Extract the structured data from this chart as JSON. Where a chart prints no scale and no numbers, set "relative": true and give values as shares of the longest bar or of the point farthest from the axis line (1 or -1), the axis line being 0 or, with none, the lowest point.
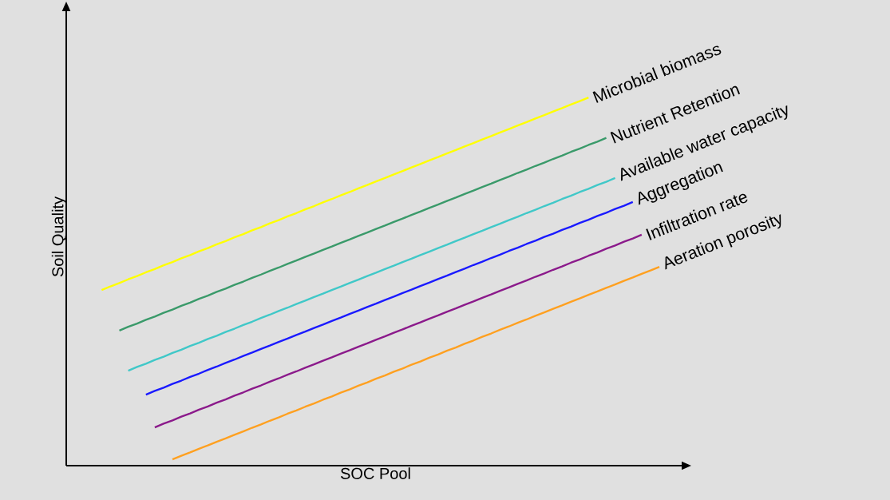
{
  "chart_data": {
    "type": "line",
    "relative": true,
    "xlabel": "SOC Pool",
    "ylabel": "Soil Quality",
    "categories": [
      null,
      null,
      null,
      null,
      null,
      null,
      null,
      null,
      null,
      null,
      null,
      null,
      null,
      null,
      null,
      null,
      null,
      null,
      null,
      null,
      null,
      null,
      null,
      null,
      null,
      null,
      null,
      null,
      null,
      null,
      null,
      null,
      null,
      null,
      null,
      null,
      null,
      null,
      null,
      null,
      null,
      null,
      null,
      null,
      null,
      null,
      null,
      null,
      null,
      null,
      null,
      null,
      null,
      null,
      null,
      null,
      null,
      null,
      null,
      null,
      null,
      null,
      null,
      null,
      null,
      null,
      null,
      null
    ],
    "series": [
      {
        "name": "Microbial biomass",
        "color": "#ffff00",
        "values": [
          null,
          null,
          null,
          null,
          0.477,
          0.487,
          0.496,
          0.506,
          0.515,
          0.525,
          0.534,
          0.544,
          0.553,
          0.563,
          0.572,
          0.582,
          0.591,
          0.601,
          0.61,
          0.62,
          0.629,
          0.639,
          0.648,
          0.658,
          0.667,
          0.677,
          0.686,
          0.696,
          0.705,
          0.715,
          0.724,
          0.734,
          0.743,
          0.753,
          0.762,
          0.772,
          0.781,
          0.791,
          0.8,
          0.81,
          0.819,
          0.829,
          0.838,
          0.848,
          0.857,
          0.867,
          0.876,
          0.886,
          0.895,
          0.905,
          0.914,
          0.924,
          0.933,
          0.943,
          0.952,
          0.962,
          0.971,
          0.981,
          0.99,
          1.0,
          null,
          null,
          null,
          null,
          null,
          null,
          null,
          null
        ]
      },
      {
        "name": "Nutrient Retention",
        "color": "#3a9a6a",
        "values": [
          null,
          null,
          null,
          null,
          null,
          null,
          0.367,
          0.377,
          0.386,
          0.396,
          0.405,
          0.415,
          0.424,
          0.434,
          0.443,
          0.453,
          0.462,
          0.472,
          0.481,
          0.491,
          0.5,
          0.51,
          0.519,
          0.529,
          0.538,
          0.548,
          0.557,
          0.567,
          0.576,
          0.586,
          0.595,
          0.605,
          0.614,
          0.624,
          0.633,
          0.643,
          0.652,
          0.662,
          0.671,
          0.681,
          0.69,
          0.7,
          0.709,
          0.719,
          0.728,
          0.738,
          0.747,
          0.757,
          0.766,
          0.776,
          0.785,
          0.795,
          0.804,
          0.814,
          0.823,
          0.833,
          0.842,
          0.852,
          0.861,
          0.871,
          0.88,
          0.89,
          null,
          null,
          null,
          null,
          null,
          null
        ]
      },
      {
        "name": "Available water capacity",
        "color": "#40c8c8",
        "values": [
          null,
          null,
          null,
          null,
          null,
          null,
          null,
          0.258,
          0.268,
          0.277,
          0.287,
          0.296,
          0.306,
          0.315,
          0.325,
          0.334,
          0.344,
          0.353,
          0.363,
          0.372,
          0.382,
          0.391,
          0.401,
          0.41,
          0.42,
          0.429,
          0.439,
          0.448,
          0.458,
          0.467,
          0.477,
          0.486,
          0.496,
          0.505,
          0.515,
          0.524,
          0.534,
          0.543,
          0.553,
          0.562,
          0.572,
          0.581,
          0.591,
          0.6,
          0.61,
          0.619,
          0.629,
          0.638,
          0.648,
          0.657,
          0.667,
          0.676,
          0.686,
          0.695,
          0.705,
          0.714,
          0.724,
          0.733,
          0.743,
          0.752,
          0.762,
          0.771,
          0.781,
          null,
          null,
          null,
          null,
          null
        ]
      },
      {
        "name": "Aggregation",
        "color": "#1a1aff",
        "values": [
          null,
          null,
          null,
          null,
          null,
          null,
          null,
          null,
          null,
          0.193,
          0.203,
          0.212,
          0.222,
          0.231,
          0.241,
          0.25,
          0.26,
          0.269,
          0.279,
          0.288,
          0.298,
          0.307,
          0.317,
          0.326,
          0.336,
          0.345,
          0.355,
          0.364,
          0.374,
          0.383,
          0.393,
          0.402,
          0.412,
          0.421,
          0.431,
          0.44,
          0.45,
          0.459,
          0.469,
          0.478,
          0.488,
          0.497,
          0.507,
          0.516,
          0.526,
          0.535,
          0.545,
          0.554,
          0.564,
          0.573,
          0.583,
          0.592,
          0.602,
          0.611,
          0.621,
          0.63,
          0.64,
          0.649,
          0.659,
          0.668,
          0.678,
          0.687,
          0.697,
          0.706,
          0.716,
          null,
          null,
          null
        ]
      },
      {
        "name": "Infiltration rate",
        "color": "#8b1a8b",
        "values": [
          null,
          null,
          null,
          null,
          null,
          null,
          null,
          null,
          null,
          null,
          0.104,
          0.114,
          0.123,
          0.133,
          0.142,
          0.152,
          0.161,
          0.171,
          0.18,
          0.19,
          0.199,
          0.209,
          0.218,
          0.228,
          0.237,
          0.247,
          0.256,
          0.266,
          0.275,
          0.285,
          0.294,
          0.304,
          0.313,
          0.323,
          0.332,
          0.342,
          0.351,
          0.361,
          0.37,
          0.38,
          0.389,
          0.399,
          0.408,
          0.418,
          0.427,
          0.437,
          0.446,
          0.456,
          0.465,
          0.475,
          0.484,
          0.494,
          0.503,
          0.513,
          0.522,
          0.532,
          0.541,
          0.551,
          0.56,
          0.57,
          0.579,
          0.589,
          0.598,
          0.608,
          0.617,
          0.627,
          null,
          null
        ]
      },
      {
        "name": "Aeration porosity",
        "color": "#ffa020",
        "values": [
          null,
          null,
          null,
          null,
          null,
          null,
          null,
          null,
          null,
          null,
          null,
          null,
          0.017,
          0.027,
          0.036,
          0.046,
          0.055,
          0.065,
          0.074,
          0.084,
          0.093,
          0.103,
          0.112,
          0.122,
          0.131,
          0.141,
          0.15,
          0.16,
          0.169,
          0.179,
          0.188,
          0.198,
          0.207,
          0.217,
          0.226,
          0.236,
          0.245,
          0.255,
          0.264,
          0.274,
          0.283,
          0.293,
          0.302,
          0.312,
          0.321,
          0.331,
          0.34,
          0.35,
          0.359,
          0.369,
          0.378,
          0.388,
          0.397,
          0.407,
          0.416,
          0.426,
          0.435,
          0.445,
          0.454,
          0.464,
          0.473,
          0.483,
          0.492,
          0.502,
          0.511,
          0.521,
          0.53,
          0.54
        ]
      }
    ]
  }
}
